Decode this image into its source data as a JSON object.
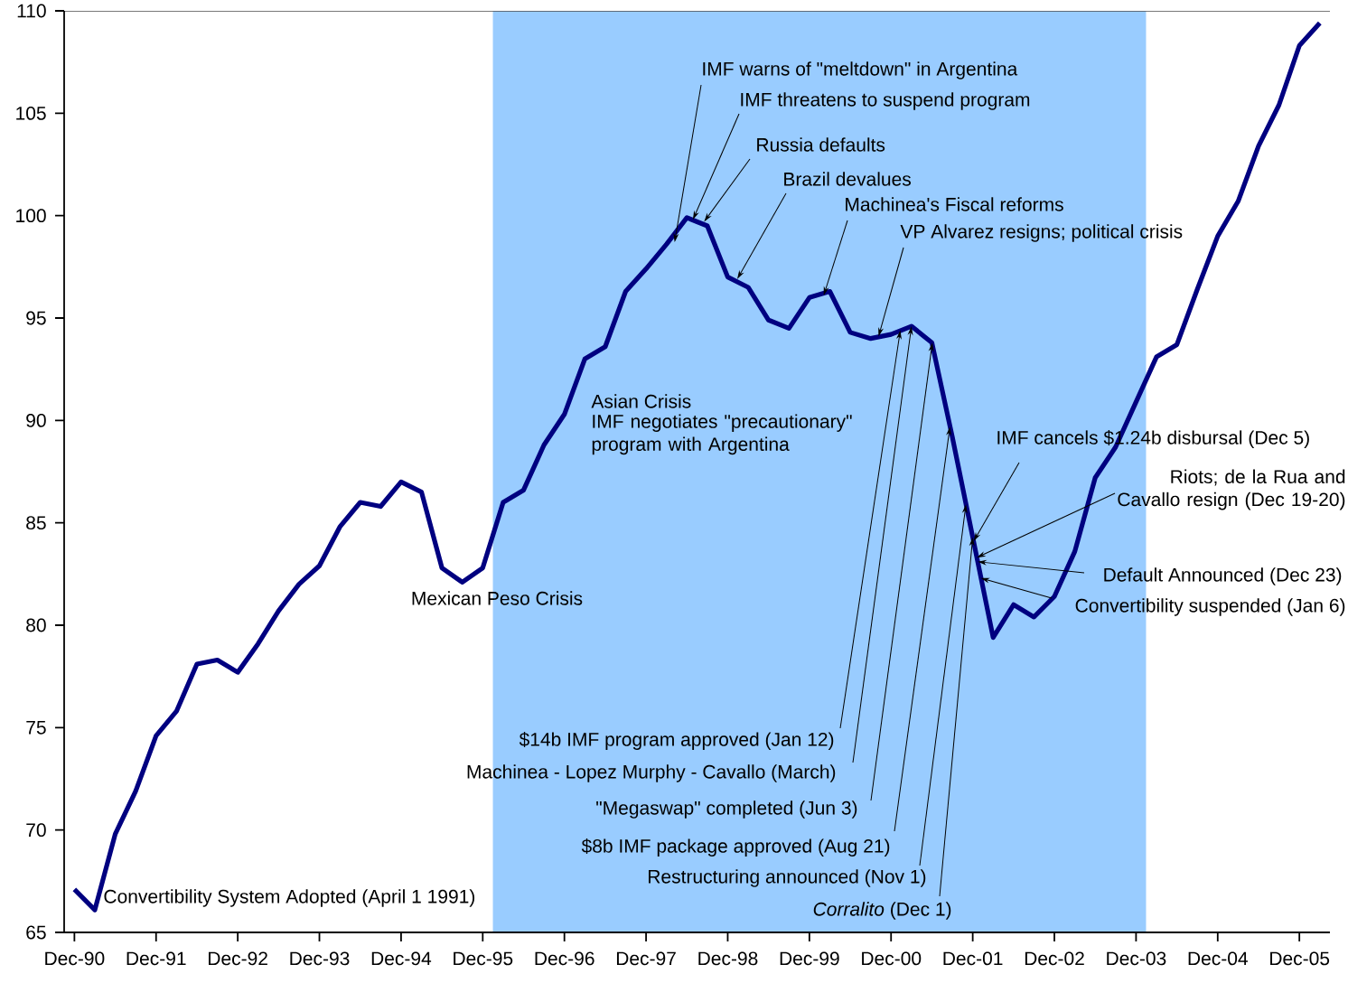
{
  "chart_data": {
    "type": "line",
    "x": [
      "1990-12",
      "1991-03",
      "1991-06",
      "1991-09",
      "1991-12",
      "1992-03",
      "1992-06",
      "1992-09",
      "1992-12",
      "1993-03",
      "1993-06",
      "1993-09",
      "1993-12",
      "1994-03",
      "1994-06",
      "1994-09",
      "1994-12",
      "1995-03",
      "1995-06",
      "1995-09",
      "1995-12",
      "1996-03",
      "1996-06",
      "1996-09",
      "1996-12",
      "1997-03",
      "1997-06",
      "1997-09",
      "1997-12",
      "1998-03",
      "1998-06",
      "1998-09",
      "1998-12",
      "1999-03",
      "1999-06",
      "1999-09",
      "1999-12",
      "2000-03",
      "2000-06",
      "2000-09",
      "2000-12",
      "2001-03",
      "2001-06",
      "2001-09",
      "2001-12",
      "2002-03",
      "2002-06",
      "2002-09",
      "2002-12",
      "2003-03",
      "2003-06",
      "2003-09",
      "2003-12",
      "2004-03",
      "2004-06",
      "2004-09",
      "2004-12",
      "2005-03",
      "2005-06",
      "2005-09",
      "2005-12",
      "2006-03"
    ],
    "series": [
      {
        "color": "#000080",
        "values": [
          67.1,
          66.1,
          69.8,
          71.9,
          74.6,
          75.8,
          78.1,
          78.3,
          77.7,
          79.1,
          80.7,
          82.0,
          82.9,
          84.8,
          86.0,
          85.8,
          87.0,
          86.5,
          82.8,
          82.1,
          82.8,
          86.0,
          86.6,
          88.8,
          90.3,
          93.0,
          93.6,
          96.3,
          97.4,
          98.6,
          99.9,
          99.5,
          97.0,
          96.5,
          94.9,
          94.5,
          96.0,
          96.3,
          94.3,
          94.0,
          94.2,
          94.6,
          93.8,
          89.2,
          84.3,
          79.4,
          81.0,
          80.4,
          81.4,
          83.6,
          87.2,
          88.7,
          90.9,
          93.1,
          93.7,
          96.4,
          99.0,
          100.7,
          103.4,
          105.4,
          108.3,
          109.4
        ]
      }
    ],
    "xlim": [
      "1990-10-16",
      "2006-04-16"
    ],
    "ylim": [
      65,
      110
    ],
    "yticks": [
      65,
      70,
      75,
      80,
      85,
      90,
      95,
      100,
      105,
      110
    ],
    "xticks": [
      {
        "value": "1990-12",
        "label": "Dec-90"
      },
      {
        "value": "1991-12",
        "label": "Dec-91"
      },
      {
        "value": "1992-12",
        "label": "Dec-92"
      },
      {
        "value": "1993-12",
        "label": "Dec-93"
      },
      {
        "value": "1994-12",
        "label": "Dec-94"
      },
      {
        "value": "1995-12",
        "label": "Dec-95"
      },
      {
        "value": "1996-12",
        "label": "Dec-96"
      },
      {
        "value": "1997-12",
        "label": "Dec-97"
      },
      {
        "value": "1998-12",
        "label": "Dec-98"
      },
      {
        "value": "1999-12",
        "label": "Dec-99"
      },
      {
        "value": "2000-12",
        "label": "Dec-00"
      },
      {
        "value": "2001-12",
        "label": "Dec-01"
      },
      {
        "value": "2002-12",
        "label": "Dec-02"
      },
      {
        "value": "2003-12",
        "label": "Dec-03"
      },
      {
        "value": "2004-12",
        "label": "Dec-04"
      },
      {
        "value": "2005-12",
        "label": "Dec-05"
      }
    ],
    "bands": [
      {
        "axis": "x",
        "from": "1996-01-16",
        "to": "2004-01-16",
        "color": "#99ccff"
      }
    ],
    "marker": "none",
    "line_style": "solid",
    "annotations": [
      {
        "text": "Convertibility System Adopted (April 1 1991)",
        "x": "1991-03",
        "y": 66.1
      },
      {
        "text": "Mexican Peso Crisis",
        "x": "1995-09",
        "y": 82.1
      },
      "Asian Crisis",
      "IMF negotiates \"precautionary\" program with Argentina",
      {
        "text": "IMF warns of \"meltdown\" in Argentina",
        "x": "1998-04-07",
        "y": 98.7
      },
      {
        "text": "IMF threatens to suspend program",
        "x": "1998-06-28",
        "y": 99.8
      },
      {
        "text": "Russia defaults",
        "x": "1998-08-17",
        "y": 99.7
      },
      {
        "text": "Brazil devalues",
        "x": "1999-01-13",
        "y": 96.9
      },
      {
        "text": "Machinea's Fiscal reforms",
        "x": "2000-02-04",
        "y": 96.1
      },
      {
        "text": "VP Alvarez resigns; political crisis",
        "x": "2000-10-06",
        "y": 94.1
      },
      {
        "text": "IMF cancels $1.24b disbursal (Dec 5)",
        "x": "2001-12-05",
        "y": 84.1
      },
      {
        "text": "Riots; de la Rua and Cavallo resign (Dec 19-20)",
        "x": "2001-12-19",
        "y": 83.3
      },
      {
        "text": "Default Announced (Dec 23)",
        "x": "2001-12-23",
        "y": 83.1
      },
      {
        "text": "Convertibility suspended (Jan 6)",
        "x": "2002-01-06",
        "y": 82.3
      },
      {
        "text": "$14b IMF program approved (Jan 12)",
        "x": "2001-01-12",
        "y": 94.4
      },
      {
        "text": "Machinea - Lopez Murphy - Cavallo (March)",
        "x": "2001-03",
        "y": 94.6
      },
      {
        "text": "\"Megaswap\" completed (Jun 3)",
        "x": "2001-06-03",
        "y": 93.8
      },
      {
        "text": "$8b IMF package approved (Aug 21)",
        "x": "2001-08-21",
        "y": 89.7
      },
      {
        "text": "Restructuring announced (Nov 1)",
        "x": "2001-11-01",
        "y": 85.9
      },
      {
        "text": "*Corralito* (Dec 1)",
        "x": "2001-12-01",
        "y": 84.3
      }
    ]
  }
}
